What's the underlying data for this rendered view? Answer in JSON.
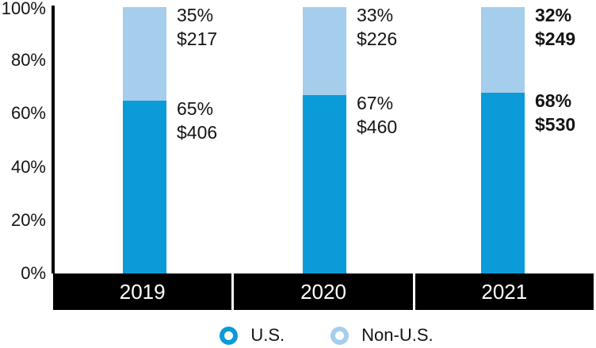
{
  "colors": {
    "us": "#0a9bd8",
    "non_us": "#a5cdec",
    "band": "#000000",
    "band_text": "#ffffff",
    "text": "#141414"
  },
  "chart_data": {
    "type": "bar",
    "subtype": "stacked_percent",
    "title": "",
    "xlabel": "",
    "ylabel": "",
    "categories": [
      "2019",
      "2020",
      "2021"
    ],
    "series": [
      {
        "name": "U.S.",
        "color_key": "us",
        "pct": [
          65,
          67,
          68
        ],
        "usd": [
          406,
          460,
          530
        ]
      },
      {
        "name": "Non-U.S.",
        "color_key": "non_us",
        "pct": [
          35,
          33,
          32
        ],
        "usd": [
          217,
          226,
          249
        ]
      }
    ],
    "bars": [
      {
        "category": "2019",
        "bold": false,
        "top": {
          "series": "Non-U.S.",
          "pct": 35,
          "pct_label": "35%",
          "usd_label": "$217"
        },
        "bottom": {
          "series": "U.S.",
          "pct": 65,
          "pct_label": "65%",
          "usd_label": "$406"
        }
      },
      {
        "category": "2020",
        "bold": false,
        "top": {
          "series": "Non-U.S.",
          "pct": 33,
          "pct_label": "33%",
          "usd_label": "$226"
        },
        "bottom": {
          "series": "U.S.",
          "pct": 67,
          "pct_label": "67%",
          "usd_label": "$460"
        }
      },
      {
        "category": "2021",
        "bold": true,
        "top": {
          "series": "Non-U.S.",
          "pct": 32,
          "pct_label": "32%",
          "usd_label": "$249"
        },
        "bottom": {
          "series": "U.S.",
          "pct": 68,
          "pct_label": "68%",
          "usd_label": "$530"
        }
      }
    ],
    "y_axis": {
      "min": 0,
      "max": 100,
      "tick_labels": [
        "100%",
        "80%",
        "60%",
        "40%",
        "20%",
        "0%"
      ],
      "tick_values": [
        100,
        80,
        60,
        40,
        20,
        0
      ]
    },
    "grid": false,
    "legend": {
      "position": "bottom",
      "entries": [
        {
          "label": "U.S.",
          "color_key": "us"
        },
        {
          "label": "Non-U.S.",
          "color_key": "non_us"
        }
      ]
    },
    "emphasized_category": "2021"
  }
}
